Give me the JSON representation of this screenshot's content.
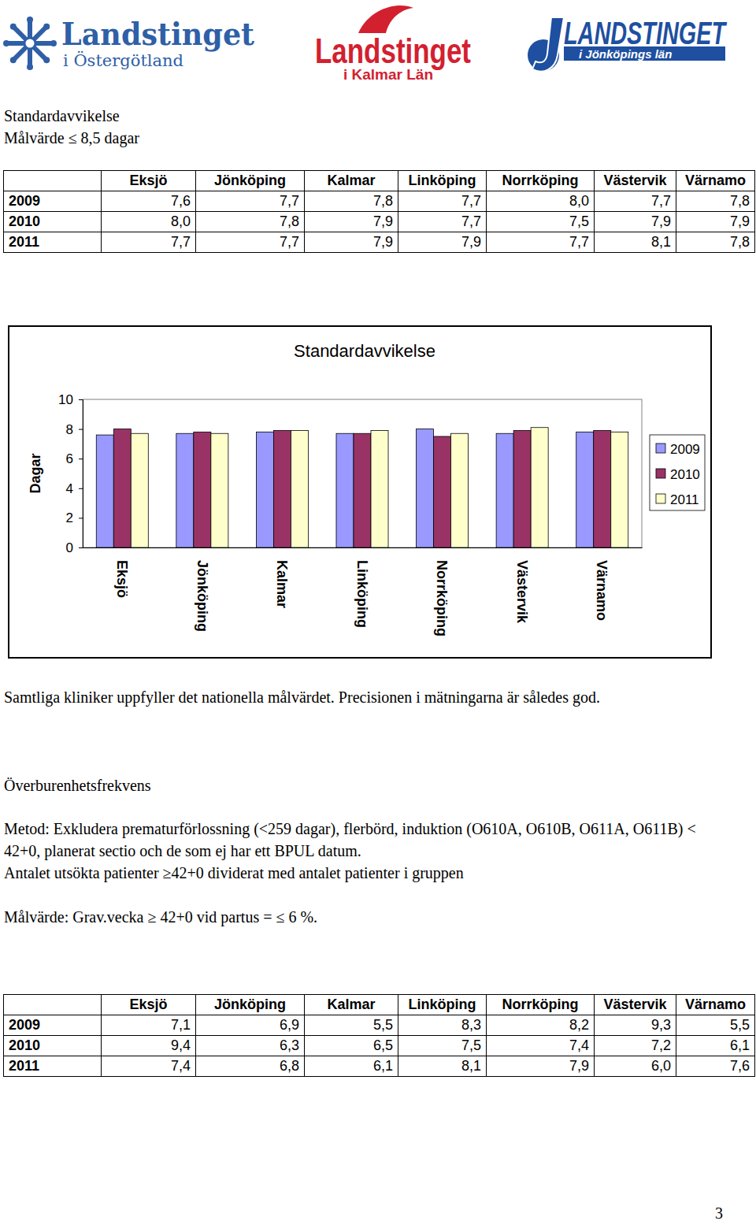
{
  "logos": [
    {
      "name": "Landstinget",
      "sub": "i Östergötland"
    },
    {
      "name": "Landstinget",
      "sub": "i Kalmar Län"
    },
    {
      "name": "LANDSTINGET",
      "sub": "i Jönköpings län"
    }
  ],
  "section1": {
    "title": "Standardavvikelse",
    "target": "Målvärde ≤ 8,5 dagar"
  },
  "table1": {
    "columns": [
      "Eksjö",
      "Jönköping",
      "Kalmar",
      "Linköping",
      "Norrköping",
      "Västervik",
      "Värnamo"
    ],
    "rows": [
      [
        "2009",
        "7,6",
        "7,7",
        "7,8",
        "7,7",
        "8,0",
        "7,7",
        "7,8"
      ],
      [
        "2010",
        "8,0",
        "7,8",
        "7,9",
        "7,7",
        "7,5",
        "7,9",
        "7,9"
      ],
      [
        "2011",
        "7,7",
        "7,7",
        "7,9",
        "7,9",
        "7,7",
        "8,1",
        "7,8"
      ]
    ]
  },
  "chart_data": {
    "type": "bar",
    "title": "Standardavvikelse",
    "y_label": "Dagar",
    "categories": [
      "Eksjö",
      "Jönköping",
      "Kalmar",
      "Linköping",
      "Norrköping",
      "Västervik",
      "Värnamo"
    ],
    "series": [
      {
        "name": "2009",
        "color": "#9999ff",
        "values": [
          7.6,
          7.7,
          7.8,
          7.7,
          8.0,
          7.7,
          7.8
        ]
      },
      {
        "name": "2010",
        "color": "#993366",
        "values": [
          8.0,
          7.8,
          7.9,
          7.7,
          7.5,
          7.9,
          7.9
        ]
      },
      {
        "name": "2011",
        "color": "#ffffcc",
        "values": [
          7.7,
          7.7,
          7.9,
          7.9,
          7.7,
          8.1,
          7.8
        ]
      }
    ],
    "ylim": [
      0,
      10
    ],
    "yticks": [
      0,
      2,
      4,
      6,
      8,
      10
    ],
    "grid": false,
    "legend": "right"
  },
  "text1": "Samtliga kliniker uppfyller det nationella målvärdet. Precisionen i mätningarna är således god.",
  "section2": {
    "title": "Överburenhetsfrekvens",
    "paragraphs": [
      "Metod: Exkludera prematurförlossning (<259 dagar), flerbörd, induktion (O610A, O610B, O611A, O611B) < 42+0, planerat sectio och de som ej har ett BPUL datum.",
      "Antalet utsökta patienter ≥42+0 dividerat med antalet patienter i gruppen",
      "Målvärde: Grav.vecka ≥ 42+0 vid partus = ≤ 6 %."
    ]
  },
  "table2": {
    "columns": [
      "Eksjö",
      "Jönköping",
      "Kalmar",
      "Linköping",
      "Norrköping",
      "Västervik",
      "Värnamo"
    ],
    "rows": [
      [
        "2009",
        "7,1",
        "6,9",
        "5,5",
        "8,3",
        "8,2",
        "9,3",
        "5,5"
      ],
      [
        "2010",
        "9,4",
        "6,3",
        "6,5",
        "7,5",
        "7,4",
        "7,2",
        "6,1"
      ],
      [
        "2011",
        "7,4",
        "6,8",
        "6,1",
        "8,1",
        "7,9",
        "6,0",
        "7,6"
      ]
    ]
  },
  "page_number": "3"
}
